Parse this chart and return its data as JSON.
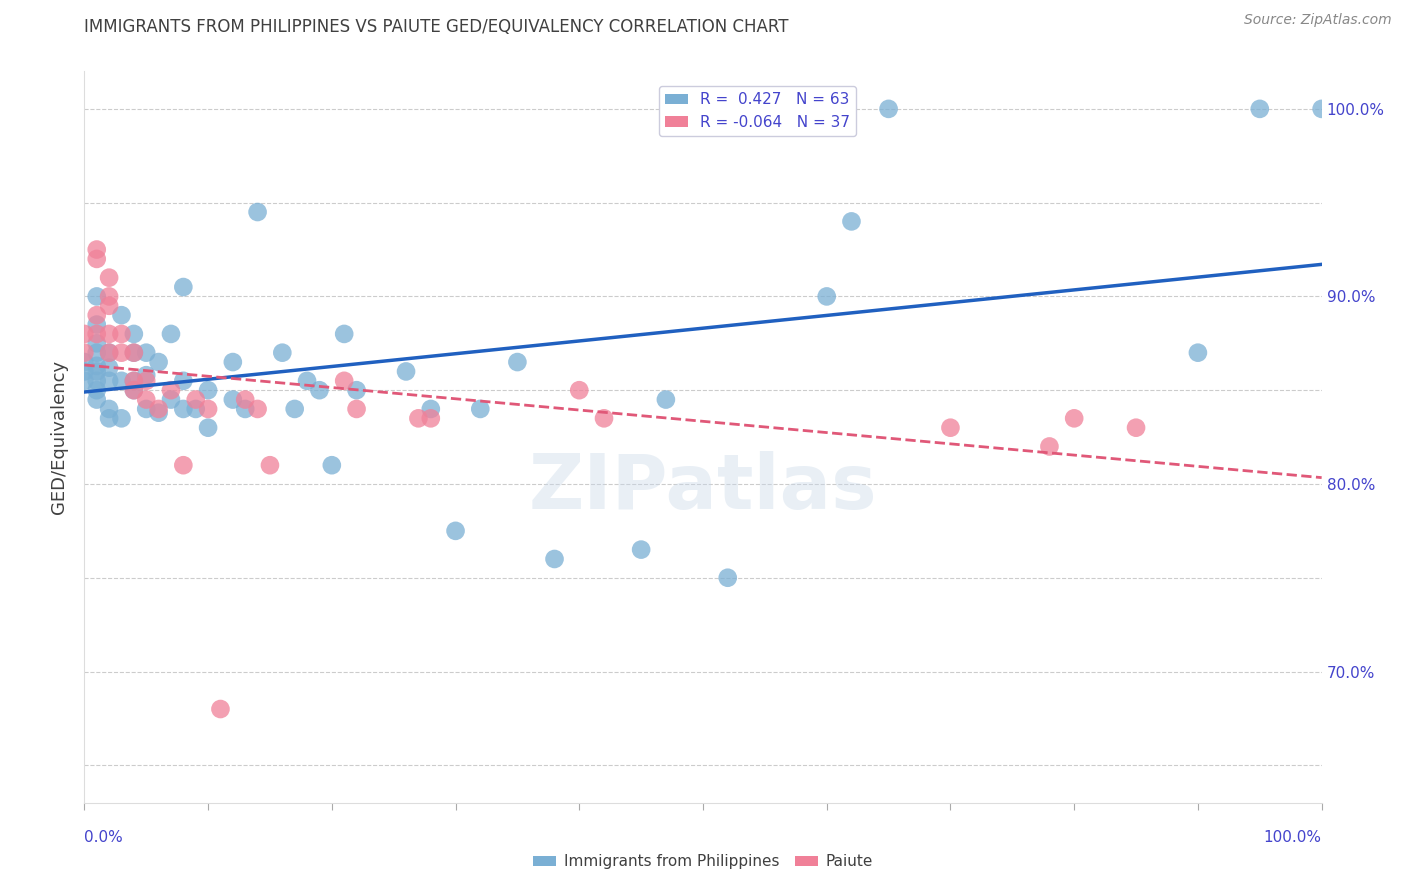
{
  "title": "IMMIGRANTS FROM PHILIPPINES VS PAIUTE GED/EQUIVALENCY CORRELATION CHART",
  "source": "Source: ZipAtlas.com",
  "ylabel": "GED/Equivalency",
  "right_yticks": [
    "70.0%",
    "80.0%",
    "90.0%",
    "100.0%"
  ],
  "right_ytick_vals": [
    0.7,
    0.8,
    0.9,
    1.0
  ],
  "legend_label_blue": "R =  0.427   N = 63",
  "legend_label_pink": "R = -0.064   N = 37",
  "legend_bottom_blue": "Immigrants from Philippines",
  "legend_bottom_pink": "Paiute",
  "blue_color": "#7aafd4",
  "pink_color": "#f08098",
  "blue_line_color": "#2060c0",
  "pink_line_color": "#e05878",
  "blue_x": [
    0.0,
    0.0,
    0.0,
    0.01,
    0.01,
    0.01,
    0.01,
    0.01,
    0.01,
    0.01,
    0.01,
    0.01,
    0.02,
    0.02,
    0.02,
    0.02,
    0.02,
    0.03,
    0.03,
    0.03,
    0.04,
    0.04,
    0.04,
    0.04,
    0.05,
    0.05,
    0.05,
    0.06,
    0.06,
    0.07,
    0.07,
    0.08,
    0.08,
    0.08,
    0.09,
    0.1,
    0.1,
    0.12,
    0.12,
    0.13,
    0.14,
    0.16,
    0.17,
    0.18,
    0.19,
    0.2,
    0.21,
    0.22,
    0.26,
    0.28,
    0.3,
    0.32,
    0.35,
    0.38,
    0.45,
    0.47,
    0.52,
    0.6,
    0.62,
    0.65,
    0.9,
    0.95,
    1.0
  ],
  "blue_y": [
    0.855,
    0.86,
    0.865,
    0.845,
    0.85,
    0.855,
    0.86,
    0.863,
    0.87,
    0.875,
    0.885,
    0.9,
    0.835,
    0.84,
    0.855,
    0.862,
    0.87,
    0.835,
    0.855,
    0.89,
    0.85,
    0.855,
    0.87,
    0.88,
    0.84,
    0.858,
    0.87,
    0.838,
    0.865,
    0.845,
    0.88,
    0.84,
    0.855,
    0.905,
    0.84,
    0.83,
    0.85,
    0.845,
    0.865,
    0.84,
    0.945,
    0.87,
    0.84,
    0.855,
    0.85,
    0.81,
    0.88,
    0.85,
    0.86,
    0.84,
    0.775,
    0.84,
    0.865,
    0.76,
    0.765,
    0.845,
    0.75,
    0.9,
    0.94,
    1.0,
    0.87,
    1.0,
    1.0
  ],
  "pink_x": [
    0.0,
    0.0,
    0.01,
    0.01,
    0.01,
    0.01,
    0.02,
    0.02,
    0.02,
    0.02,
    0.02,
    0.03,
    0.03,
    0.04,
    0.04,
    0.04,
    0.05,
    0.05,
    0.06,
    0.07,
    0.08,
    0.09,
    0.1,
    0.11,
    0.13,
    0.14,
    0.15,
    0.21,
    0.22,
    0.27,
    0.28,
    0.4,
    0.42,
    0.7,
    0.78,
    0.8,
    0.85
  ],
  "pink_y": [
    0.88,
    0.87,
    0.92,
    0.925,
    0.89,
    0.88,
    0.91,
    0.9,
    0.895,
    0.88,
    0.87,
    0.88,
    0.87,
    0.87,
    0.855,
    0.85,
    0.855,
    0.845,
    0.84,
    0.85,
    0.81,
    0.845,
    0.84,
    0.68,
    0.845,
    0.84,
    0.81,
    0.855,
    0.84,
    0.835,
    0.835,
    0.85,
    0.835,
    0.83,
    0.82,
    0.835,
    0.83
  ],
  "xlim": [
    0.0,
    1.0
  ],
  "ylim": [
    0.63,
    1.02
  ],
  "watermark": "ZIPatlas",
  "title_color": "#404040",
  "source_color": "#888888",
  "axis_color": "#4444cc",
  "grid_color": "#cccccc"
}
